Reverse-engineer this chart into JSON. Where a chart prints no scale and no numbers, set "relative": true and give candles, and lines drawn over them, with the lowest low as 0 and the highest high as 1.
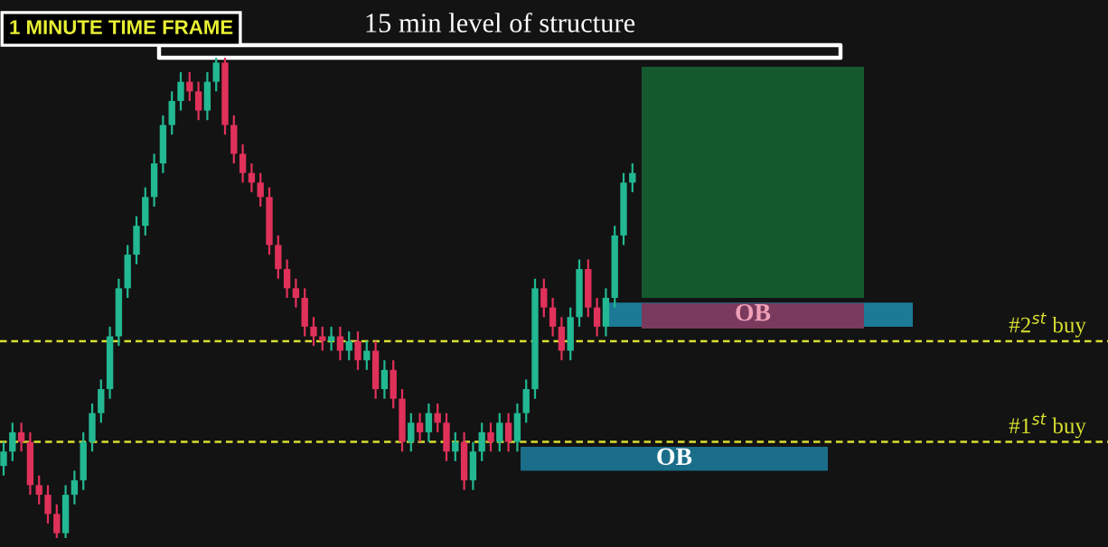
{
  "chart_data": {
    "type": "candlestick",
    "title": "1 MINUTE TIME FRAME",
    "relative": true,
    "categories": [
      null,
      null,
      null,
      null,
      null,
      null,
      null,
      null,
      null,
      null,
      null,
      null,
      null,
      null,
      null,
      null,
      null,
      null,
      null,
      null,
      null,
      null,
      null,
      null,
      null,
      null,
      null,
      null,
      null,
      null,
      null,
      null,
      null,
      null,
      null,
      null,
      null,
      null,
      null,
      null,
      null,
      null,
      null,
      null,
      null,
      null,
      null,
      null,
      null,
      null,
      null,
      null,
      null,
      null,
      null,
      null,
      null,
      null,
      null,
      null,
      null,
      null,
      null,
      null,
      null,
      null,
      null,
      null,
      null,
      null,
      null,
      null
    ],
    "ohlc": [
      [
        0.15,
        0.2,
        0.13,
        0.18
      ],
      [
        0.18,
        0.24,
        0.16,
        0.22
      ],
      [
        0.22,
        0.24,
        0.18,
        0.2
      ],
      [
        0.2,
        0.22,
        0.09,
        0.11
      ],
      [
        0.11,
        0.13,
        0.07,
        0.09
      ],
      [
        0.09,
        0.11,
        0.03,
        0.05
      ],
      [
        0.05,
        0.07,
        0.0,
        0.01
      ],
      [
        0.01,
        0.11,
        0.0,
        0.09
      ],
      [
        0.09,
        0.14,
        0.07,
        0.12
      ],
      [
        0.12,
        0.22,
        0.1,
        0.2
      ],
      [
        0.2,
        0.28,
        0.18,
        0.26
      ],
      [
        0.26,
        0.33,
        0.24,
        0.31
      ],
      [
        0.31,
        0.44,
        0.29,
        0.42
      ],
      [
        0.42,
        0.54,
        0.4,
        0.52
      ],
      [
        0.52,
        0.61,
        0.5,
        0.59
      ],
      [
        0.59,
        0.67,
        0.57,
        0.65
      ],
      [
        0.65,
        0.73,
        0.63,
        0.71
      ],
      [
        0.71,
        0.8,
        0.69,
        0.78
      ],
      [
        0.78,
        0.88,
        0.76,
        0.86
      ],
      [
        0.86,
        0.93,
        0.84,
        0.91
      ],
      [
        0.91,
        0.97,
        0.89,
        0.95
      ],
      [
        0.95,
        0.97,
        0.91,
        0.93
      ],
      [
        0.93,
        0.95,
        0.87,
        0.89
      ],
      [
        0.89,
        0.97,
        0.87,
        0.95
      ],
      [
        0.95,
        1.0,
        0.93,
        0.99
      ],
      [
        0.99,
        1.0,
        0.84,
        0.86
      ],
      [
        0.86,
        0.88,
        0.78,
        0.8
      ],
      [
        0.8,
        0.82,
        0.74,
        0.76
      ],
      [
        0.76,
        0.78,
        0.72,
        0.74
      ],
      [
        0.74,
        0.76,
        0.69,
        0.71
      ],
      [
        0.71,
        0.73,
        0.59,
        0.61
      ],
      [
        0.61,
        0.63,
        0.54,
        0.56
      ],
      [
        0.56,
        0.58,
        0.5,
        0.52
      ],
      [
        0.52,
        0.54,
        0.48,
        0.5
      ],
      [
        0.5,
        0.52,
        0.42,
        0.44
      ],
      [
        0.44,
        0.46,
        0.4,
        0.42
      ],
      [
        0.42,
        0.44,
        0.39,
        0.41
      ],
      [
        0.41,
        0.44,
        0.39,
        0.42
      ],
      [
        0.42,
        0.44,
        0.37,
        0.39
      ],
      [
        0.39,
        0.43,
        0.37,
        0.41
      ],
      [
        0.41,
        0.43,
        0.35,
        0.37
      ],
      [
        0.37,
        0.41,
        0.35,
        0.39
      ],
      [
        0.39,
        0.41,
        0.29,
        0.31
      ],
      [
        0.31,
        0.37,
        0.29,
        0.35
      ],
      [
        0.35,
        0.37,
        0.27,
        0.29
      ],
      [
        0.29,
        0.31,
        0.18,
        0.2
      ],
      [
        0.2,
        0.26,
        0.18,
        0.24
      ],
      [
        0.24,
        0.26,
        0.2,
        0.22
      ],
      [
        0.22,
        0.28,
        0.2,
        0.26
      ],
      [
        0.26,
        0.28,
        0.22,
        0.24
      ],
      [
        0.24,
        0.26,
        0.16,
        0.18
      ],
      [
        0.18,
        0.22,
        0.16,
        0.2
      ],
      [
        0.2,
        0.22,
        0.1,
        0.12
      ],
      [
        0.12,
        0.2,
        0.1,
        0.18
      ],
      [
        0.18,
        0.24,
        0.16,
        0.22
      ],
      [
        0.22,
        0.24,
        0.18,
        0.2
      ],
      [
        0.2,
        0.26,
        0.18,
        0.24
      ],
      [
        0.24,
        0.26,
        0.18,
        0.2
      ],
      [
        0.2,
        0.28,
        0.18,
        0.26
      ],
      [
        0.26,
        0.33,
        0.24,
        0.31
      ],
      [
        0.31,
        0.54,
        0.29,
        0.52
      ],
      [
        0.52,
        0.54,
        0.46,
        0.48
      ],
      [
        0.48,
        0.5,
        0.42,
        0.44
      ],
      [
        0.44,
        0.46,
        0.37,
        0.39
      ],
      [
        0.39,
        0.48,
        0.37,
        0.46
      ],
      [
        0.46,
        0.58,
        0.44,
        0.56
      ],
      [
        0.56,
        0.58,
        0.46,
        0.48
      ],
      [
        0.48,
        0.5,
        0.42,
        0.44
      ],
      [
        0.44,
        0.52,
        0.42,
        0.5
      ],
      [
        0.5,
        0.65,
        0.48,
        0.63
      ],
      [
        0.63,
        0.76,
        0.61,
        0.74
      ],
      [
        0.74,
        0.78,
        0.72,
        0.76
      ]
    ],
    "ref_lines": [
      {
        "axis": "y",
        "value": 1.0,
        "label": "15 min level of structure",
        "color": "#ffffff",
        "line_style": "solid"
      },
      {
        "axis": "y",
        "value": 0.41,
        "label": "#2$^{st}$ buy",
        "color": "#d8e030",
        "line_style": "dashed"
      },
      {
        "axis": "y",
        "value": 0.2,
        "label": "#1$^{st}$ buy",
        "color": "#d8e030",
        "line_style": "dashed"
      }
    ],
    "bands": [
      {
        "axis": "y",
        "from": 0.44,
        "to": 0.49,
        "label": "OB",
        "color": "#1c7a96"
      },
      {
        "axis": "y",
        "from": 0.14,
        "to": 0.19,
        "label": "OB",
        "color": "#1a6e8a"
      }
    ]
  }
}
